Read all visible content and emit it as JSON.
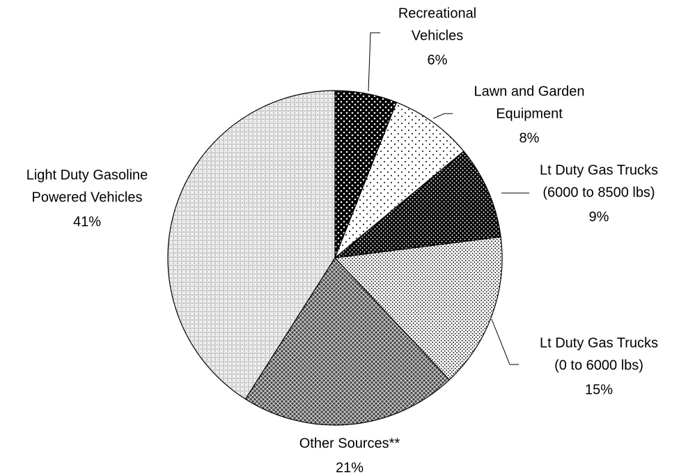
{
  "chart_data": {
    "type": "pie",
    "categories": [
      [
        "Recreational",
        "Vehicles"
      ],
      [
        "Lawn and Garden",
        "Equipment"
      ],
      [
        "Lt Duty Gas Trucks",
        "(6000 to 8500 lbs)"
      ],
      [
        "Lt Duty Gas Trucks",
        "(0 to 6000 lbs)"
      ],
      [
        "Other Sources**"
      ],
      [
        "Light Duty Gasoline",
        "Powered Vehicles"
      ]
    ],
    "values": [
      6,
      8,
      9,
      15,
      21,
      41
    ],
    "value_labels": [
      "6%",
      "8%",
      "9%",
      "15%",
      "21%",
      "41%"
    ]
  }
}
